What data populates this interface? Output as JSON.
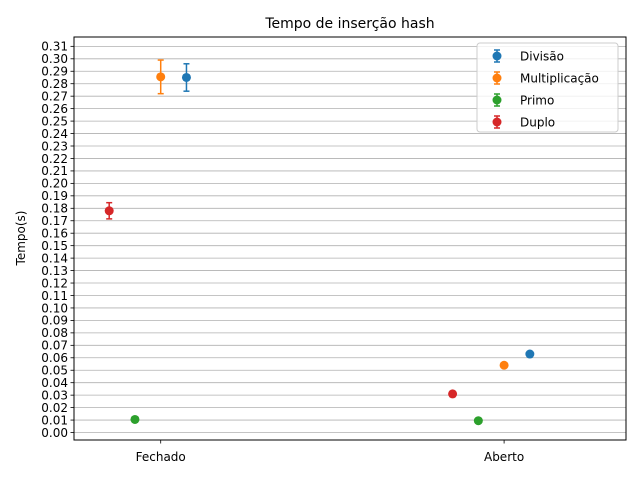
{
  "chart_data": {
    "type": "scatter",
    "title": "Tempo de inserção hash",
    "xlabel": "",
    "ylabel": "Tempo(s)",
    "categories": [
      "Fechado",
      "Aberto"
    ],
    "ylim": [
      -0.006,
      0.3175
    ],
    "yticks": [
      0.0,
      0.01,
      0.02,
      0.03,
      0.04,
      0.05,
      0.06,
      0.07,
      0.08,
      0.09,
      0.1,
      0.11,
      0.12,
      0.13,
      0.14,
      0.15,
      0.16,
      0.17,
      0.18,
      0.19,
      0.2,
      0.21,
      0.22,
      0.23,
      0.24,
      0.25,
      0.26,
      0.27,
      0.28,
      0.29,
      0.3,
      0.31
    ],
    "grid": "y",
    "legend_position": "top-right",
    "series": [
      {
        "name": "Divisão",
        "color": "#1f77b4",
        "values": [
          0.285,
          0.063
        ],
        "errors": [
          0.011,
          0.0
        ],
        "offsets": [
          0.3,
          0.3
        ]
      },
      {
        "name": "Multiplicação",
        "color": "#ff7f0e",
        "values": [
          0.2855,
          0.054
        ],
        "errors": [
          0.0135,
          0.0
        ],
        "offsets": [
          0.0,
          0.0
        ]
      },
      {
        "name": "Primo",
        "color": "#2ca02c",
        "values": [
          0.0105,
          0.0095
        ],
        "errors": [
          0.0,
          0.0
        ],
        "offsets": [
          -0.3,
          -0.3
        ]
      },
      {
        "name": "Duplo",
        "color": "#d62728",
        "values": [
          0.178,
          0.031
        ],
        "errors": [
          0.0065,
          0.0
        ],
        "offsets": [
          -0.6,
          -0.6
        ]
      }
    ]
  }
}
